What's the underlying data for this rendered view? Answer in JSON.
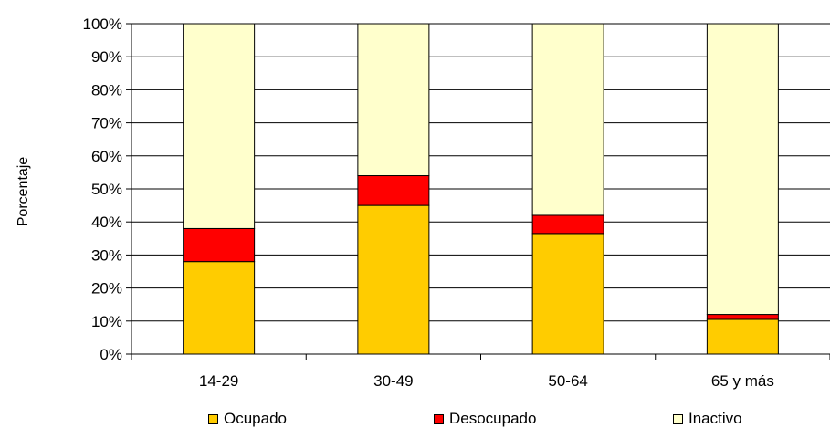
{
  "chart_data": {
    "type": "bar",
    "stacked": true,
    "title": "",
    "xlabel": "",
    "ylabel": "Porcentaje",
    "categories": [
      "14-29",
      "30-49",
      "50-64",
      "65 y más"
    ],
    "ylim": [
      0,
      100
    ],
    "yticks": [
      "0%",
      "10%",
      "20%",
      "30%",
      "40%",
      "50%",
      "60%",
      "70%",
      "80%",
      "90%",
      "100%"
    ],
    "grid": true,
    "legend_position": "bottom",
    "series": [
      {
        "name": "Ocupado",
        "color": "#FFCC00",
        "values": [
          28,
          45,
          36.5,
          10.5
        ]
      },
      {
        "name": "Desocupado",
        "color": "#FF0000",
        "values": [
          10,
          9,
          5.5,
          1.5
        ]
      },
      {
        "name": "Inactivo",
        "color": "#FFFFCC",
        "values": [
          62,
          46,
          58,
          88
        ]
      }
    ]
  }
}
